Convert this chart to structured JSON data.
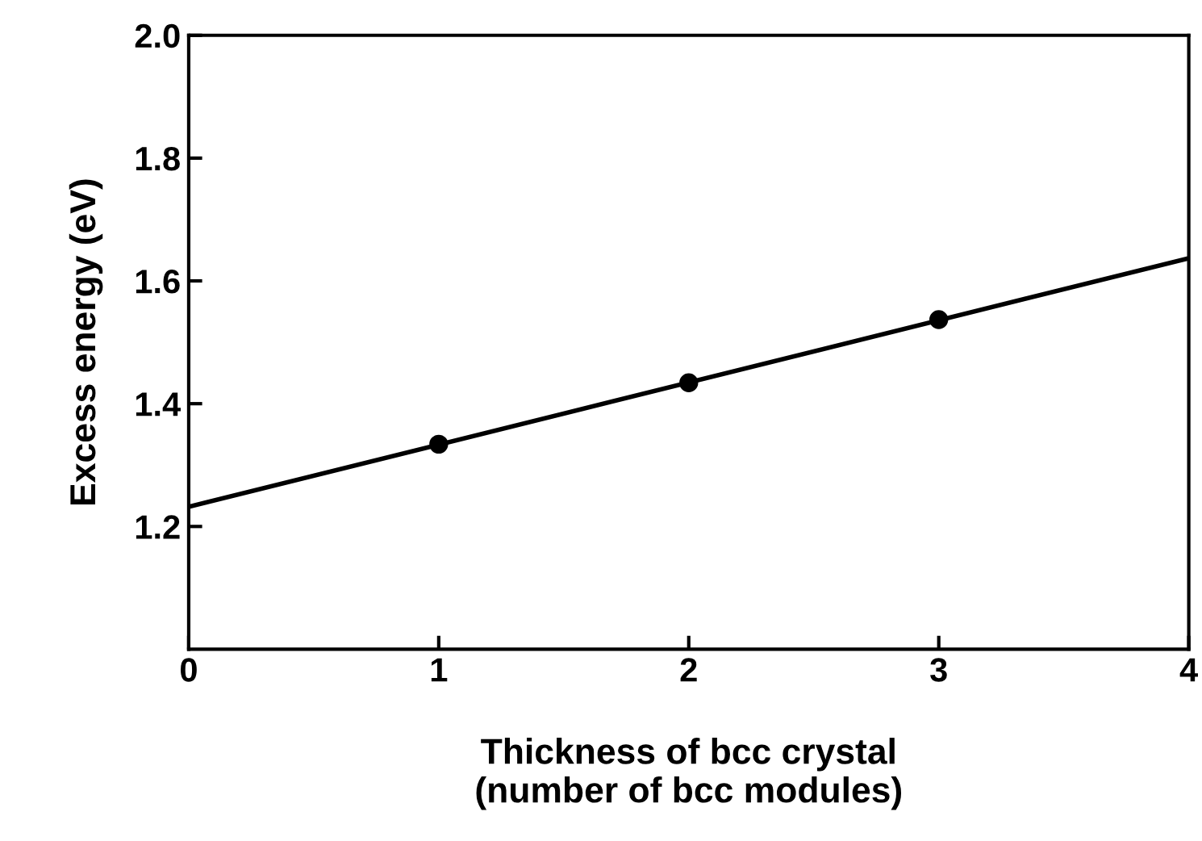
{
  "chart_data": {
    "type": "scatter",
    "xlabel": "Thickness of bcc crystal\n(number of bcc modules)",
    "ylabel": "Excess energy (eV)",
    "xlim": [
      0,
      4
    ],
    "ylim": [
      1.0,
      2.0
    ],
    "xticks": [
      0,
      1,
      2,
      3,
      4
    ],
    "yticks": [
      {
        "value": 1.2,
        "label": "1.2"
      },
      {
        "value": 1.4,
        "label": "1.4"
      },
      {
        "value": 1.6,
        "label": "1.6"
      },
      {
        "value": 1.8,
        "label": "1.8"
      },
      {
        "value": 2.0,
        "label": "2.0"
      }
    ],
    "grid": false,
    "legend": false,
    "series": [
      {
        "color": "#000000",
        "marker": "circle",
        "x": [
          1,
          2,
          3
        ],
        "values": [
          1.334,
          1.434,
          1.537
        ]
      },
      {
        "type": "line",
        "color": "#000000",
        "marker": "none",
        "line_style": "solid",
        "x": [
          0,
          4
        ],
        "values": [
          1.232,
          1.637
        ]
      }
    ]
  }
}
